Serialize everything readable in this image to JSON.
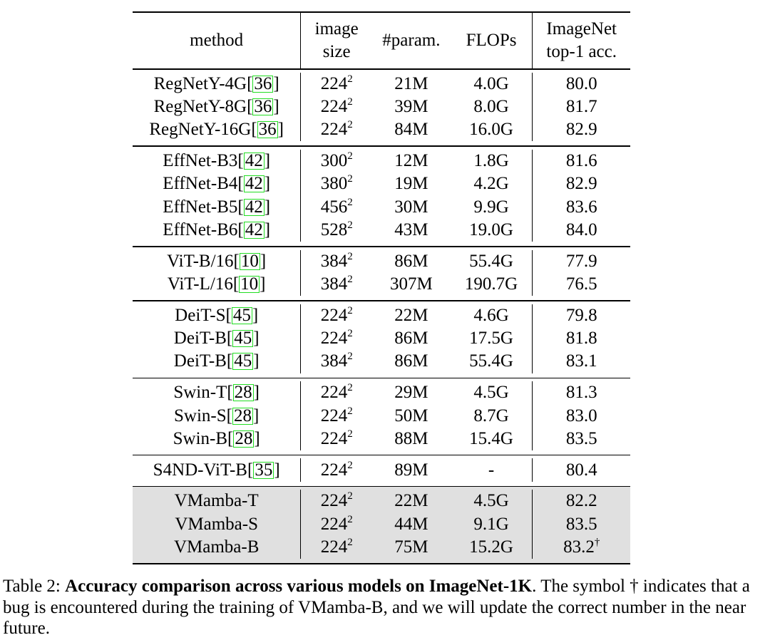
{
  "header": {
    "method": "method",
    "image_size_1": "image",
    "image_size_2": "size",
    "params": "#param.",
    "flops": "FLOPs",
    "acc_1": "ImageNet",
    "acc_2": "top-1 acc."
  },
  "groups": [
    {
      "rows": [
        {
          "name": "RegNetY-4G ",
          "ref": "36",
          "size": "224",
          "exp": "2",
          "params": "21M",
          "flops": "4.0G",
          "acc": "80.0"
        },
        {
          "name": "RegNetY-8G ",
          "ref": "36",
          "size": "224",
          "exp": "2",
          "params": "39M",
          "flops": "8.0G",
          "acc": "81.7"
        },
        {
          "name": "RegNetY-16G ",
          "ref": "36",
          "size": "224",
          "exp": "2",
          "params": "84M",
          "flops": "16.0G",
          "acc": "82.9"
        }
      ]
    },
    {
      "rows": [
        {
          "name": "EffNet-B3 ",
          "ref": "42",
          "size": "300",
          "exp": "2",
          "params": "12M",
          "flops": "1.8G",
          "acc": "81.6"
        },
        {
          "name": "EffNet-B4 ",
          "ref": "42",
          "size": "380",
          "exp": "2",
          "params": "19M",
          "flops": "4.2G",
          "acc": "82.9"
        },
        {
          "name": "EffNet-B5 ",
          "ref": "42",
          "size": "456",
          "exp": "2",
          "params": "30M",
          "flops": "9.9G",
          "acc": "83.6"
        },
        {
          "name": "EffNet-B6 ",
          "ref": "42",
          "size": "528",
          "exp": "2",
          "params": "43M",
          "flops": "19.0G",
          "acc": "84.0"
        }
      ]
    },
    {
      "rows": [
        {
          "name": "ViT-B/16 ",
          "ref": "10",
          "size": "384",
          "exp": "2",
          "params": "86M",
          "flops": "55.4G",
          "acc": "77.9"
        },
        {
          "name": "ViT-L/16 ",
          "ref": "10",
          "size": "384",
          "exp": "2",
          "params": "307M",
          "flops": "190.7G",
          "acc": "76.5"
        }
      ]
    },
    {
      "rows": [
        {
          "name": "DeiT-S ",
          "ref": "45",
          "size": "224",
          "exp": "2",
          "params": "22M",
          "flops": "4.6G",
          "acc": "79.8"
        },
        {
          "name": "DeiT-B ",
          "ref": "45",
          "size": "224",
          "exp": "2",
          "params": "86M",
          "flops": "17.5G",
          "acc": "81.8"
        },
        {
          "name": "DeiT-B ",
          "ref": "45",
          "size": "384",
          "exp": "2",
          "params": "86M",
          "flops": "55.4G",
          "acc": "83.1"
        }
      ]
    },
    {
      "rows": [
        {
          "name": "Swin-T ",
          "ref": "28",
          "size": "224",
          "exp": "2",
          "params": "29M",
          "flops": "4.5G",
          "acc": "81.3"
        },
        {
          "name": "Swin-S ",
          "ref": "28",
          "size": "224",
          "exp": "2",
          "params": "50M",
          "flops": "8.7G",
          "acc": "83.0"
        },
        {
          "name": "Swin-B ",
          "ref": "28",
          "size": "224",
          "exp": "2",
          "params": "88M",
          "flops": "15.4G",
          "acc": "83.5"
        }
      ]
    },
    {
      "rows": [
        {
          "name": "S4ND-ViT-B ",
          "ref": "35",
          "size": "224",
          "exp": "2",
          "params": "89M",
          "flops": "-",
          "acc": "80.4"
        }
      ]
    },
    {
      "highlight": true,
      "rows": [
        {
          "name": "VMamba-T",
          "size": "224",
          "exp": "2",
          "params": "22M",
          "flops": "4.5G",
          "acc": "82.2"
        },
        {
          "name": "VMamba-S",
          "size": "224",
          "exp": "2",
          "params": "44M",
          "flops": "9.1G",
          "acc": "83.5"
        },
        {
          "name": "VMamba-B",
          "size": "224",
          "exp": "2",
          "params": "75M",
          "flops": "15.2G",
          "acc": "83.2",
          "acc_mark": "†"
        }
      ]
    }
  ],
  "caption": {
    "label": "Table 2: ",
    "bold": "Accuracy comparison across various models on ImageNet-1K",
    "rest": ". The symbol † indicates that a bug is encountered during the training of VMamba-B, and we will update the correct number in the near future."
  }
}
